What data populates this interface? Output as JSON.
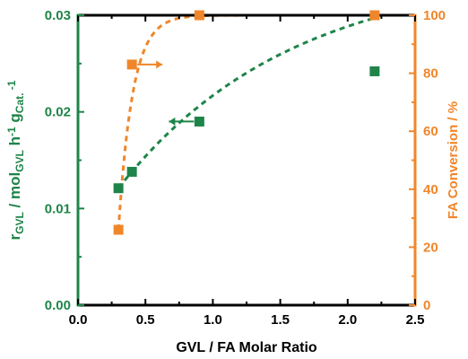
{
  "chart_data": {
    "type": "scatter",
    "title": "",
    "xlabel": "GVL / FA Molar Ratio",
    "ylabel_left": {
      "parts": [
        {
          "t": "r",
          "s": ""
        },
        {
          "t": "GVL",
          "s": "sub"
        },
        {
          "t": " / mol",
          "s": ""
        },
        {
          "t": "GVL",
          "s": "sub"
        },
        {
          "t": " h",
          "s": ""
        },
        {
          "t": "-1",
          "s": "sup"
        },
        {
          "t": " g",
          "s": ""
        },
        {
          "t": "Cat.",
          "s": "sub"
        },
        {
          "t": " -1",
          "s": "sup"
        }
      ]
    },
    "ylabel_right": "FA Conversion / %",
    "xlim": [
      0.0,
      2.5
    ],
    "ylim_left": [
      0.0,
      0.03
    ],
    "ylim_right": [
      0,
      100
    ],
    "x_ticks": [
      "0.0",
      "0.5",
      "1.0",
      "1.5",
      "2.0",
      "2.5"
    ],
    "y_left_ticks": [
      "0.00",
      "0.01",
      "0.02",
      "0.03"
    ],
    "y_right_ticks": [
      "0",
      "20",
      "40",
      "60",
      "80",
      "100"
    ],
    "grid": false,
    "series": [
      {
        "axis": "left",
        "color": "#1e8449",
        "marker": "square",
        "x": [
          0.3,
          0.4,
          0.9,
          2.2
        ],
        "y": [
          0.0121,
          0.0138,
          0.019,
          0.0242
        ]
      },
      {
        "axis": "right",
        "color": "#f0862a",
        "marker": "square",
        "x": [
          0.3,
          0.4,
          0.9,
          2.2
        ],
        "y": [
          26,
          83,
          100,
          100
        ]
      }
    ],
    "axis_arrows": [
      {
        "series_index": 0,
        "direction": "left"
      },
      {
        "series_index": 1,
        "direction": "right"
      }
    ],
    "colors": {
      "left_axis": "#1e8449",
      "right_axis": "#f0862a",
      "frame": "#000000"
    }
  }
}
